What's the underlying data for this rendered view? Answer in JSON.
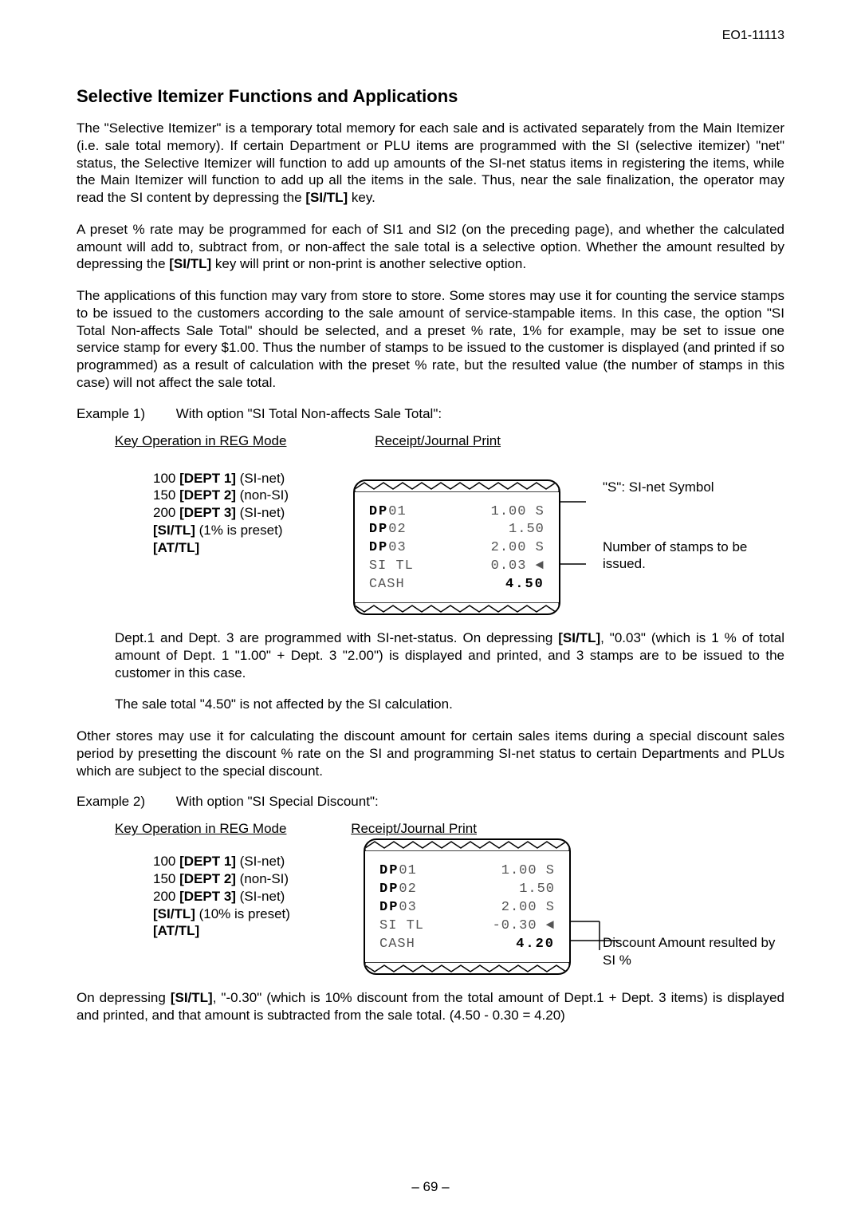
{
  "doc_id": "EO1-11113",
  "title": "Selective Itemizer Functions and Applications",
  "para1": "The \"Selective Itemizer\" is a temporary total memory for each sale and is activated separately from the Main Itemizer (i.e. sale total memory).  If certain Department or PLU items are programmed with the SI (selective itemizer) \"net\" status, the Selective Itemizer will function to add up amounts of the SI-net status items in registering the items, while the Main Itemizer will function to add up all the items in the sale.  Thus, near the sale finalization, the operator may read the SI content by depressing the [SI/TL] key.",
  "para1_bold": "[SI/TL]",
  "para2": "A preset % rate may be programmed for each of SI1 and SI2 (on the preceding page), and whether the calculated amount will add to, subtract from, or non-affect the sale total is a selective option.  Whether the amount resulted by depressing the [SI/TL] key will print or non-print is another selective option.",
  "para2_bold": "[SI/TL]",
  "para3": "The applications of this function may vary from store to store.  Some stores may use it for counting the service stamps to be issued to the customers according to the sale amount of service-stampable items.  In this case, the option \"SI Total Non-affects Sale Total\" should be selected, and a preset % rate, 1% for example, may be set to issue one service stamp for every $1.00. Thus the number of stamps to be issued to the customer is displayed (and printed if so programmed) as a result of calculation with the preset % rate, but the resulted value (the number of stamps in this case) will not affect the sale total.",
  "example1_label_a": "Example 1)",
  "example1_label_b": "With option \"SI Total Non-affects Sale Total\":",
  "kop_heading": "Key Operation in REG Mode",
  "rj_heading": "Receipt/Journal Print",
  "ex1_ops": {
    "l1a": "100 ",
    "l1b": "[DEPT 1]",
    "l1c": " (SI-net)",
    "l2a": "150 ",
    "l2b": "[DEPT 2]",
    "l2c": " (non-SI)",
    "l3a": "200 ",
    "l3b": "[DEPT 3]",
    "l3c": " (SI-net)",
    "l4a": "[SI/TL]",
    "l4b": " (1% is preset)",
    "l5a": "[AT/TL]"
  },
  "ex1_receipt": {
    "r1l": "DP",
    "r1l2": "01",
    "r1v": "1.00 S",
    "r2l": "DP",
    "r2l2": "02",
    "r2v": "1.50",
    "r3l": "DP",
    "r3l2": "03",
    "r3v": "2.00 S",
    "r4l": "SI TL",
    "r4v": "0.03",
    "r5l": "CASH",
    "r5v": "4.50"
  },
  "ex1_annot1": "\"S\": SI-net Symbol",
  "ex1_annot2": "Number of stamps to be issued.",
  "ex1_after_p1": "Dept.1 and Dept. 3 are programmed with SI-net-status.  On depressing [SI/TL], \"0.03\" (which is 1 % of total amount of Dept. 1 \"1.00\" + Dept. 3 \"2.00\") is displayed and printed, and 3 stamps are to be issued to the customer in this case.",
  "ex1_after_p1_bold": "[SI/TL]",
  "ex1_after_p2": "The sale total \"4.50\" is not affected by the SI calculation.",
  "para4": "Other stores may use it for calculating the discount amount for certain sales items during a special discount sales period by presetting the discount % rate on the SI and programming SI-net status to certain Departments and PLUs which are subject to the special discount.",
  "example2_label_a": "Example 2)",
  "example2_label_b": "With option \"SI Special Discount\":",
  "ex2_ops": {
    "l1a": "100 ",
    "l1b": "[DEPT 1]",
    "l1c": " (SI-net)",
    "l2a": "150 ",
    "l2b": "[DEPT 2]",
    "l2c": " (non-SI)",
    "l3a": "200 ",
    "l3b": "[DEPT 3]",
    "l3c": " (SI-net)",
    "l4a": "[SI/TL]",
    "l4b": " (10% is preset)",
    "l5a": "[AT/TL]"
  },
  "ex2_receipt": {
    "r1l": "DP",
    "r1l2": "01",
    "r1v": "1.00 S",
    "r2l": "DP",
    "r2l2": "02",
    "r2v": "1.50",
    "r3l": "DP",
    "r3l2": "03",
    "r3v": "2.00 S",
    "r4l": "SI TL",
    "r4v": "-0.30",
    "r5l": "CASH",
    "r5v": "4.20"
  },
  "ex2_annot1": "Discount Amount resulted by SI %",
  "para5_pre": "On depressing ",
  "para5_bold": "[SI/TL]",
  "para5_post": ", \"-0.30\" (which is 10% discount from the total amount of Dept.1 + Dept. 3 items) is displayed and printed, and that amount is subtracted from the sale total.  (4.50 - 0.30 = 4.20)",
  "page_num": "– 69 –"
}
